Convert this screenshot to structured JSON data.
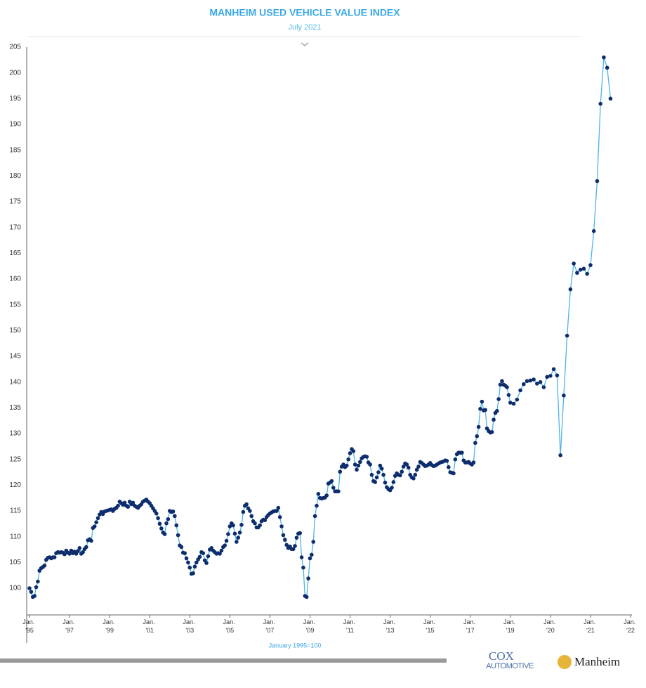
{
  "chart_data": {
    "type": "line",
    "title": "MANHEIM USED VEHICLE VALUE INDEX",
    "subtitle": "July 2021",
    "note": "January 1995=100",
    "color": "#4fb3e8",
    "marker_color": "#0d2d6c",
    "x": [
      "1995-01",
      "1995-02",
      "1995-03",
      "1995-04",
      "1995-05",
      "1995-06",
      "1995-07",
      "1995-08",
      "1995-09",
      "1995-10",
      "1995-11",
      "1995-12",
      "1996-01",
      "1996-02",
      "1996-03",
      "1996-04",
      "1996-05",
      "1996-06",
      "1996-07",
      "1996-08",
      "1996-09",
      "1996-10",
      "1996-11",
      "1996-12",
      "1997-01",
      "1997-02",
      "1997-03",
      "1997-04",
      "1997-05",
      "1997-06",
      "1997-07",
      "1997-08",
      "1997-09",
      "1997-10",
      "1997-11",
      "1997-12",
      "1998-01",
      "1998-02",
      "1998-03",
      "1998-04",
      "1998-05",
      "1998-06",
      "1998-07",
      "1998-08",
      "1998-09",
      "1998-10",
      "1998-11",
      "1998-12",
      "1999-01",
      "1999-02",
      "1999-03",
      "1999-04",
      "1999-05",
      "1999-06",
      "1999-07",
      "1999-08",
      "1999-09",
      "1999-10",
      "1999-11",
      "1999-12",
      "2000-01",
      "2000-02",
      "2000-03",
      "2000-04",
      "2000-05",
      "2000-06",
      "2000-07",
      "2000-08",
      "2000-09",
      "2000-10",
      "2000-11",
      "2000-12",
      "2001-01",
      "2001-02",
      "2001-03",
      "2001-04",
      "2001-05",
      "2001-06",
      "2001-07",
      "2001-08",
      "2001-09",
      "2001-10",
      "2001-11",
      "2001-12",
      "2002-01",
      "2002-02",
      "2002-03",
      "2002-04",
      "2002-05",
      "2002-06",
      "2002-07",
      "2002-08",
      "2002-09",
      "2002-10",
      "2002-11",
      "2002-12",
      "2003-01",
      "2003-02",
      "2003-03",
      "2003-04",
      "2003-05",
      "2003-06",
      "2003-07",
      "2003-08",
      "2003-09",
      "2003-10",
      "2003-11",
      "2003-12",
      "2004-01",
      "2004-02",
      "2004-03",
      "2004-04",
      "2004-05",
      "2004-06",
      "2004-07",
      "2004-08",
      "2004-09",
      "2004-10",
      "2004-11",
      "2004-12",
      "2005-01",
      "2005-02",
      "2005-03",
      "2005-04",
      "2005-05",
      "2005-06",
      "2005-07",
      "2005-08",
      "2005-09",
      "2005-10",
      "2005-11",
      "2005-12",
      "2006-01",
      "2006-02",
      "2006-03",
      "2006-04",
      "2006-05",
      "2006-06",
      "2006-07",
      "2006-08",
      "2006-09",
      "2006-10",
      "2006-11",
      "2006-12",
      "2007-01",
      "2007-02",
      "2007-03",
      "2007-04",
      "2007-05",
      "2007-06",
      "2007-07",
      "2007-08",
      "2007-09",
      "2007-10",
      "2007-11",
      "2007-12",
      "2008-01",
      "2008-02",
      "2008-03",
      "2008-04",
      "2008-05",
      "2008-06",
      "2008-07",
      "2008-08",
      "2008-09",
      "2008-10",
      "2008-11",
      "2008-12",
      "2009-01",
      "2009-02",
      "2009-03",
      "2009-04",
      "2009-05",
      "2009-06",
      "2009-07",
      "2009-08",
      "2009-09",
      "2009-10",
      "2009-11",
      "2009-12",
      "2010-01",
      "2010-02",
      "2010-03",
      "2010-04",
      "2010-05",
      "2010-06",
      "2010-07",
      "2010-08",
      "2010-09",
      "2010-10",
      "2010-11",
      "2010-12",
      "2011-01",
      "2011-02",
      "2011-03",
      "2011-04",
      "2011-05",
      "2011-06",
      "2011-07",
      "2011-08",
      "2011-09",
      "2011-10",
      "2011-11",
      "2011-12",
      "2012-01",
      "2012-02",
      "2012-03",
      "2012-04",
      "2012-05",
      "2012-06",
      "2012-07",
      "2012-08",
      "2012-09",
      "2012-10",
      "2012-11",
      "2012-12",
      "2013-01",
      "2013-02",
      "2013-03",
      "2013-04",
      "2013-05",
      "2013-06",
      "2013-07",
      "2013-08",
      "2013-09",
      "2013-10",
      "2013-11",
      "2013-12",
      "2014-01",
      "2014-02",
      "2014-03",
      "2014-04",
      "2014-05",
      "2014-06",
      "2014-07",
      "2014-08",
      "2014-09",
      "2014-10",
      "2014-11",
      "2014-12",
      "2015-01",
      "2015-02",
      "2015-03",
      "2015-04",
      "2015-05",
      "2015-06",
      "2015-07",
      "2015-08",
      "2015-09",
      "2015-10",
      "2015-11",
      "2015-12",
      "2016-01",
      "2016-02",
      "2016-03",
      "2016-04",
      "2016-05",
      "2016-06",
      "2016-07",
      "2016-08",
      "2016-09",
      "2016-10",
      "2016-11",
      "2016-12",
      "2017-01",
      "2017-02",
      "2017-03",
      "2017-04",
      "2017-05",
      "2017-06",
      "2017-07",
      "2017-08",
      "2017-09",
      "2017-10",
      "2017-11",
      "2017-12",
      "2018-01",
      "2018-02",
      "2018-03",
      "2018-04",
      "2018-05",
      "2018-06",
      "2018-07",
      "2018-08",
      "2018-09",
      "2018-10",
      "2018-11",
      "2018-12",
      "2019-01",
      "2019-02",
      "2019-03",
      "2019-04",
      "2019-05",
      "2019-06",
      "2019-07",
      "2019-08",
      "2019-09",
      "2019-10",
      "2019-11",
      "2019-12",
      "2020-01",
      "2020-02",
      "2020-03",
      "2020-04",
      "2020-05",
      "2020-06",
      "2020-07",
      "2020-08",
      "2020-09",
      "2020-10",
      "2020-11",
      "2020-12",
      "2021-01",
      "2021-02",
      "2021-03",
      "2021-04",
      "2021-05",
      "2021-06",
      "2021-07"
    ],
    "values": [
      100,
      99.3,
      98.3,
      98.5,
      100.2,
      101.3,
      103.4,
      103.9,
      104.1,
      104.4,
      105.5,
      105.9,
      106,
      105.8,
      106,
      106,
      106.8,
      107,
      106.9,
      107,
      106.9,
      106.6,
      107.3,
      106.9,
      106.7,
      107.3,
      106.8,
      107.1,
      106.7,
      107.2,
      107.8,
      106.7,
      107,
      107.6,
      108,
      109.3,
      109.5,
      109.2,
      111.7,
      112,
      112.8,
      113.6,
      114.3,
      114.8,
      114.4,
      114.9,
      115,
      115.1,
      115.2,
      115.3,
      115,
      115.4,
      115.6,
      116,
      116.8,
      116.5,
      116.2,
      116.6,
      116,
      115.8,
      116.8,
      116.3,
      116.6,
      116,
      115.8,
      115.6,
      116,
      116.3,
      116.8,
      117,
      117.2,
      116.8,
      116.5,
      116,
      115.5,
      115,
      114.5,
      113.6,
      112.5,
      111.6,
      110.8,
      110.5,
      112.6,
      113.4,
      115,
      114.8,
      114.9,
      114,
      112.2,
      110.3,
      108.3,
      108,
      106.9,
      106.8,
      105.8,
      105,
      104,
      102.8,
      102.9,
      104.2,
      105,
      105.6,
      106.1,
      107,
      106.8,
      105.4,
      104.9,
      106.2,
      107.5,
      107.8,
      107.3,
      107,
      106.7,
      106.8,
      106.7,
      107.3,
      108,
      108.3,
      109.2,
      110.5,
      112,
      112.6,
      112.2,
      110.6,
      109,
      109.8,
      110.8,
      112.3,
      114.8,
      116,
      116.3,
      115.5,
      115,
      114,
      113,
      112.6,
      111.8,
      111.8,
      112.2,
      113,
      113.3,
      113.2,
      113.8,
      114.2,
      114.5,
      114.7,
      114.9,
      115,
      115,
      115.6,
      113.8,
      112,
      110.3,
      109.4,
      108.4,
      107.8,
      108.1,
      107.6,
      107.6,
      108.2,
      109.8,
      110.6,
      110.7,
      106,
      104,
      98.5,
      98.3,
      101.9,
      105.8,
      106.5,
      109,
      114,
      116,
      118.3,
      117.5,
      117.4,
      117.5,
      117.6,
      118,
      120.3,
      120.5,
      120.8,
      119.5,
      118.8,
      118.8,
      118.8,
      122.6,
      123.6,
      124,
      123.5,
      123.8,
      125,
      126.2,
      127,
      126.6,
      124,
      123,
      123.8,
      124.5,
      125.2,
      125.5,
      125.6,
      125.5,
      124.4,
      124,
      122,
      120.8,
      120.6,
      121.5,
      122.5,
      123.8,
      123.2,
      122,
      120.5,
      119.6,
      119.2,
      119,
      119.5,
      120.6,
      121.8,
      122.3,
      122,
      121.9,
      122.6,
      123.6,
      124.2,
      124,
      123.4,
      122,
      121.5,
      121.3,
      122,
      123,
      123.6,
      124.5,
      124.3,
      124,
      123.7,
      123.8,
      124,
      124.3,
      123.9,
      123.7,
      123.8,
      124,
      124.2,
      124.4,
      124.5,
      124.6,
      124.8,
      124.7,
      123.5,
      122.5,
      122.4,
      122.3,
      125,
      126,
      126.3,
      126.3,
      126.3,
      124.8,
      124.4,
      124.4,
      124.5,
      124.2,
      124,
      124.4,
      128.2,
      129.5,
      131.3,
      134.8,
      136.2,
      134.5,
      134.6,
      131,
      130.5,
      130.2,
      130.3,
      132.7,
      134,
      134.4,
      136.7,
      139.5,
      140.2,
      139.5,
      139.3,
      139,
      137.5,
      136,
      135.8,
      136.6,
      138.4,
      139.6,
      140.2,
      140.3,
      140.5,
      139.7,
      140,
      139,
      141,
      141.2,
      142.5,
      141.3,
      125.8,
      137.4,
      149,
      158,
      163,
      161.2,
      161.8,
      162,
      161,
      162.7,
      169.3,
      179,
      194,
      203,
      201,
      195
    ],
    "ylim": [
      95,
      205
    ],
    "yticks": [
      100,
      105,
      110,
      115,
      120,
      125,
      130,
      135,
      140,
      145,
      150,
      155,
      160,
      165,
      170,
      175,
      180,
      185,
      190,
      195,
      200,
      205
    ],
    "xticks": [
      {
        "value": "1995-01",
        "label": "Jan. '95"
      },
      {
        "value": "1997-01",
        "label": "Jan. '97"
      },
      {
        "value": "1999-01",
        "label": "Jan. '99"
      },
      {
        "value": "2001-01",
        "label": "Jan. '01"
      },
      {
        "value": "2003-01",
        "label": "Jan. '03"
      },
      {
        "value": "2005-01",
        "label": "Jan. '05"
      },
      {
        "value": "2007-01",
        "label": "Jan. '07"
      },
      {
        "value": "2009-01",
        "label": "Jan. '09"
      },
      {
        "value": "2011-01",
        "label": "Jan. '11"
      },
      {
        "value": "2013-01",
        "label": "Jan. '13"
      },
      {
        "value": "2015-01",
        "label": "Jan. '15"
      },
      {
        "value": "2017-01",
        "label": "Jan. '17"
      },
      {
        "value": "2019-01",
        "label": "Jan. '19"
      },
      {
        "value": "2020-01",
        "label": "Jan. '20"
      },
      {
        "value": "2021-01",
        "label": "Jan. '21"
      },
      {
        "value": "2022-01",
        "label": "Jan. '22"
      }
    ]
  },
  "footer": {
    "logos": [
      "COX",
      "AUTOMOTIVE",
      "Manheim"
    ]
  }
}
